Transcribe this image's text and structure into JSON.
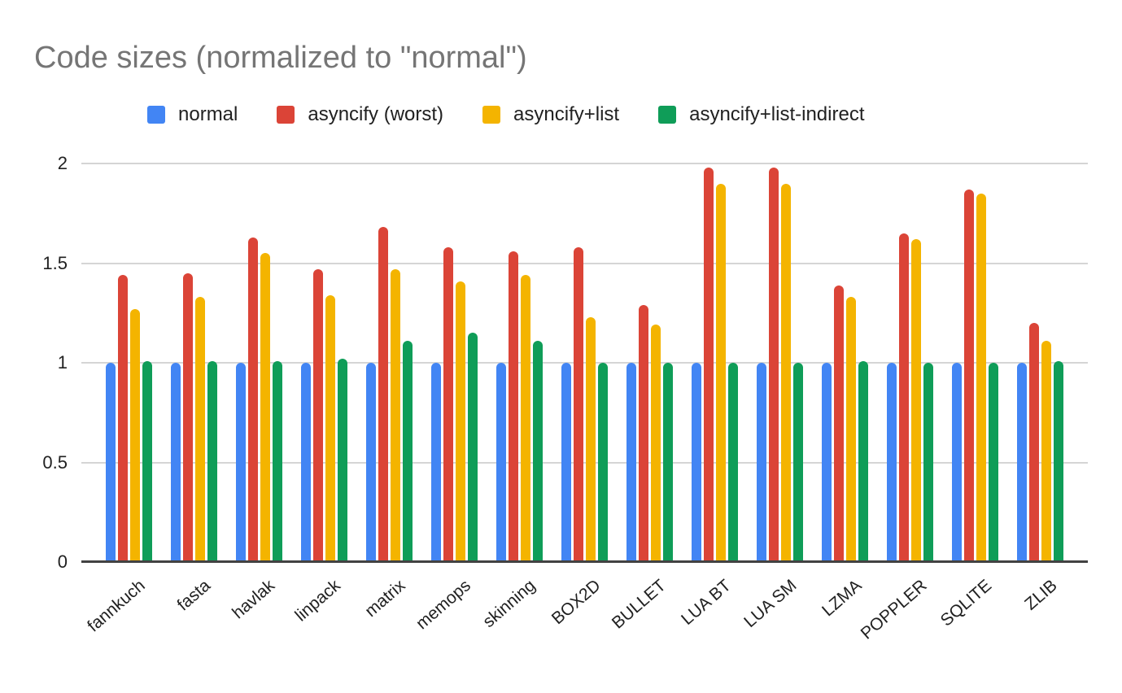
{
  "chart_data": {
    "type": "bar",
    "title": "Code sizes (normalized to \"normal\")",
    "title_color": "#757575",
    "categories": [
      "fannkuch",
      "fasta",
      "havlak",
      "linpack",
      "matrix",
      "memops",
      "skinning",
      "BOX2D",
      "BULLET",
      "LUA BT",
      "LUA SM",
      "LZMA",
      "POPPLER",
      "SQLITE",
      "ZLIB"
    ],
    "series": [
      {
        "name": "normal",
        "color": "#4285F4",
        "values": [
          1.0,
          1.0,
          1.0,
          1.0,
          1.0,
          1.0,
          1.0,
          1.0,
          1.0,
          1.0,
          1.0,
          1.0,
          1.0,
          1.0,
          1.0
        ]
      },
      {
        "name": "asyncify (worst)",
        "color": "#DB4437",
        "values": [
          1.44,
          1.45,
          1.63,
          1.47,
          1.68,
          1.58,
          1.56,
          1.58,
          1.29,
          1.98,
          1.98,
          1.39,
          1.65,
          1.87,
          1.2
        ]
      },
      {
        "name": "asyncify+list",
        "color": "#F4B400",
        "values": [
          1.27,
          1.33,
          1.55,
          1.34,
          1.47,
          1.41,
          1.44,
          1.23,
          1.19,
          1.9,
          1.9,
          1.33,
          1.62,
          1.85,
          1.11
        ]
      },
      {
        "name": "asyncify+list-indirect",
        "color": "#0F9D58",
        "values": [
          1.01,
          1.01,
          1.01,
          1.02,
          1.11,
          1.15,
          1.11,
          1.0,
          1.0,
          1.0,
          1.0,
          1.01,
          1.0,
          1.0,
          1.01
        ]
      }
    ],
    "xlabel": "",
    "ylabel": "",
    "ylim": [
      0,
      2
    ],
    "yticks": [
      0,
      0.5,
      1,
      1.5,
      2
    ],
    "ytick_labels": [
      "0",
      "0.5",
      "1",
      "1.5",
      "2"
    ],
    "grid": true,
    "grid_color": "#d5d5d5",
    "axis_color": "#424242",
    "legend_position": "top"
  }
}
